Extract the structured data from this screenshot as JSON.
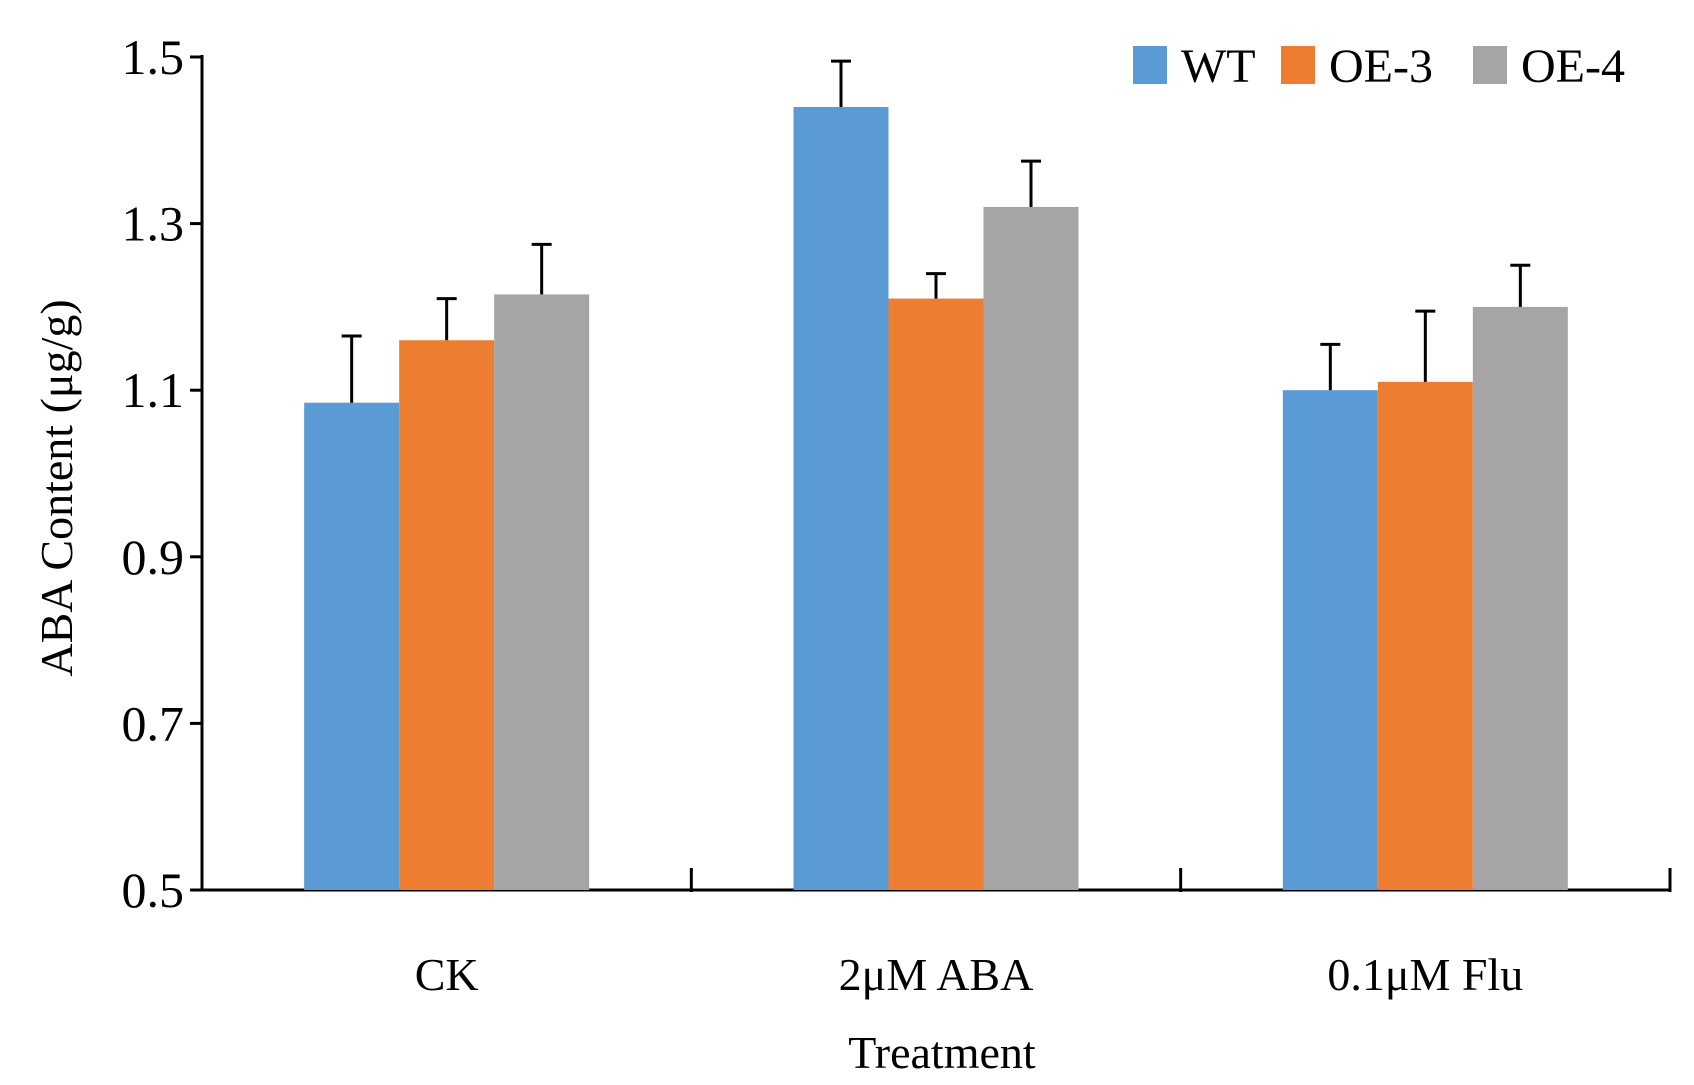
{
  "chart_data": {
    "type": "bar",
    "title": "",
    "xlabel": "Treatment",
    "ylabel": "ABA Content (μg/g)",
    "ylim": [
      0.5,
      1.5
    ],
    "yticks": [
      "0.5",
      "0.7",
      "0.9",
      "1.1",
      "1.3",
      "1.5"
    ],
    "categories": [
      "CK",
      "2μM ABA",
      "0.1μM Flu"
    ],
    "series": [
      {
        "name": "WT",
        "color": "#5B9BD5",
        "values": [
          1.085,
          1.44,
          1.1
        ],
        "errors": [
          0.08,
          0.055,
          0.055
        ]
      },
      {
        "name": "OE-3",
        "color": "#ED7D31",
        "values": [
          1.16,
          1.21,
          1.11
        ],
        "errors": [
          0.05,
          0.03,
          0.085
        ]
      },
      {
        "name": "OE-4",
        "color": "#A5A5A5",
        "values": [
          1.215,
          1.32,
          1.2
        ],
        "errors": [
          0.06,
          0.055,
          0.05
        ]
      }
    ],
    "legend_position": "top-right",
    "grid": false,
    "error_bars": "upper"
  }
}
